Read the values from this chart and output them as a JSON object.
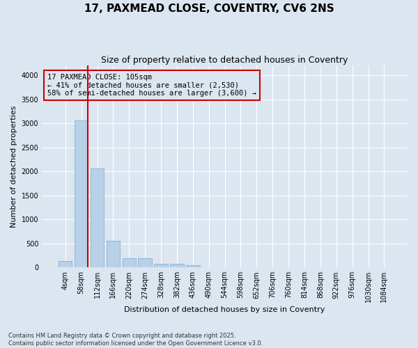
{
  "title": "17, PAXMEAD CLOSE, COVENTRY, CV6 2NS",
  "subtitle": "Size of property relative to detached houses in Coventry",
  "xlabel": "Distribution of detached houses by size in Coventry",
  "ylabel": "Number of detached properties",
  "footer_line1": "Contains HM Land Registry data © Crown copyright and database right 2025.",
  "footer_line2": "Contains public sector information licensed under the Open Government Licence v3.0.",
  "annotation_title": "17 PAXMEAD CLOSE: 105sqm",
  "annotation_line1": "← 41% of detached houses are smaller (2,530)",
  "annotation_line2": "58% of semi-detached houses are larger (3,600) →",
  "bar_color": "#b8d0e8",
  "bar_edge_color": "#7aaac8",
  "vline_color": "#cc0000",
  "annotation_box_edge_color": "#cc0000",
  "background_color": "#dce6f0",
  "grid_color": "#ffffff",
  "categories": [
    "4sqm",
    "58sqm",
    "112sqm",
    "166sqm",
    "220sqm",
    "274sqm",
    "328sqm",
    "382sqm",
    "436sqm",
    "490sqm",
    "544sqm",
    "598sqm",
    "652sqm",
    "706sqm",
    "760sqm",
    "814sqm",
    "868sqm",
    "922sqm",
    "976sqm",
    "1030sqm",
    "1084sqm"
  ],
  "values": [
    140,
    3060,
    2060,
    560,
    200,
    190,
    80,
    70,
    55,
    0,
    0,
    0,
    0,
    0,
    0,
    0,
    0,
    0,
    0,
    0,
    0
  ],
  "vline_x": 1.42,
  "ylim": [
    0,
    4200
  ],
  "yticks": [
    0,
    500,
    1000,
    1500,
    2000,
    2500,
    3000,
    3500,
    4000
  ],
  "title_fontsize": 11,
  "subtitle_fontsize": 9,
  "ylabel_fontsize": 8,
  "xlabel_fontsize": 8,
  "tick_fontsize": 7,
  "annotation_fontsize": 7.5,
  "footer_fontsize": 6
}
